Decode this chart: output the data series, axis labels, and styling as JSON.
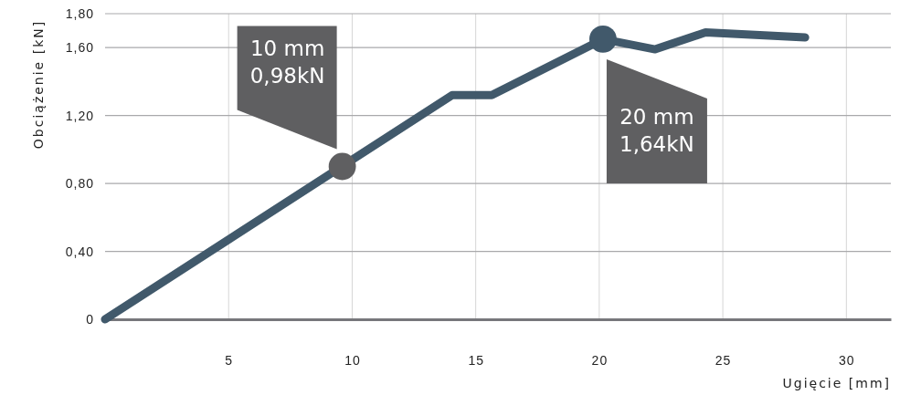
{
  "chart_data": {
    "type": "line",
    "xlabel": "Ugięcie [mm]",
    "ylabel": "Obciążenie [kN]",
    "xlim": [
      0,
      31.8
    ],
    "ylim": [
      0,
      1.8
    ],
    "xticks": [
      5,
      10,
      15,
      20,
      25,
      30
    ],
    "yticks": [
      {
        "value": 0,
        "label": "0"
      },
      {
        "value": 0.4,
        "label": "0,40"
      },
      {
        "value": 0.8,
        "label": "0,80"
      },
      {
        "value": 1.2,
        "label": "1,20"
      },
      {
        "value": 1.6,
        "label": "1,60"
      },
      {
        "value": 1.8,
        "label": "1,80"
      }
    ],
    "grid": true,
    "line_style": "solid",
    "marker": "none",
    "series": [
      {
        "color": "#41596b",
        "x": [
          0,
          14.05,
          15.65,
          20.15,
          22.26,
          24.3,
          28.33
        ],
        "values": [
          0,
          1.32,
          1.32,
          1.65,
          1.59,
          1.69,
          1.66
        ]
      },
      {
        "type": "scatter",
        "marker": "circle",
        "colors": [
          "#5f5f61",
          "#41596b"
        ],
        "x": [
          9.6,
          20.15
        ],
        "values": [
          0.9,
          1.65
        ]
      }
    ],
    "annotations": [
      "10 mm\n0,98kN",
      "20 mm\n1,64kN"
    ]
  }
}
